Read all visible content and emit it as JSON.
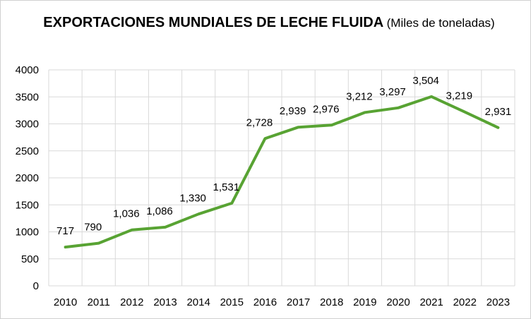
{
  "chart_data": {
    "type": "line",
    "title": "EXPORTACIONES MUNDIALES DE LECHE FLUIDA",
    "subtitle": "(Miles de toneladas)",
    "xlabel": "",
    "ylabel": "",
    "ylim": [
      0,
      4000
    ],
    "yticks": [
      "0",
      "500",
      "1000",
      "1500",
      "2000",
      "2500",
      "3000",
      "3500",
      "4000"
    ],
    "ytick_values": [
      0,
      500,
      1000,
      1500,
      2000,
      2500,
      3000,
      3500,
      4000
    ],
    "grid": true,
    "legend": "none",
    "line_color": "#58a333",
    "categories": [
      "2010",
      "2011",
      "2012",
      "2013",
      "2014",
      "2015",
      "2016",
      "2017",
      "2018",
      "2019",
      "2020",
      "2021",
      "2022",
      "2023"
    ],
    "values": [
      717,
      790,
      1036,
      1086,
      1330,
      1531,
      2728,
      2939,
      2976,
      3212,
      3297,
      3504,
      3219,
      2931
    ],
    "data_labels": [
      "717",
      "790",
      "1,036",
      "1,086",
      "1,330",
      "1,531",
      "2,728",
      "2,939",
      "2,976",
      "3,212",
      "3,297",
      "3,504",
      "3,219",
      "2,931"
    ]
  }
}
